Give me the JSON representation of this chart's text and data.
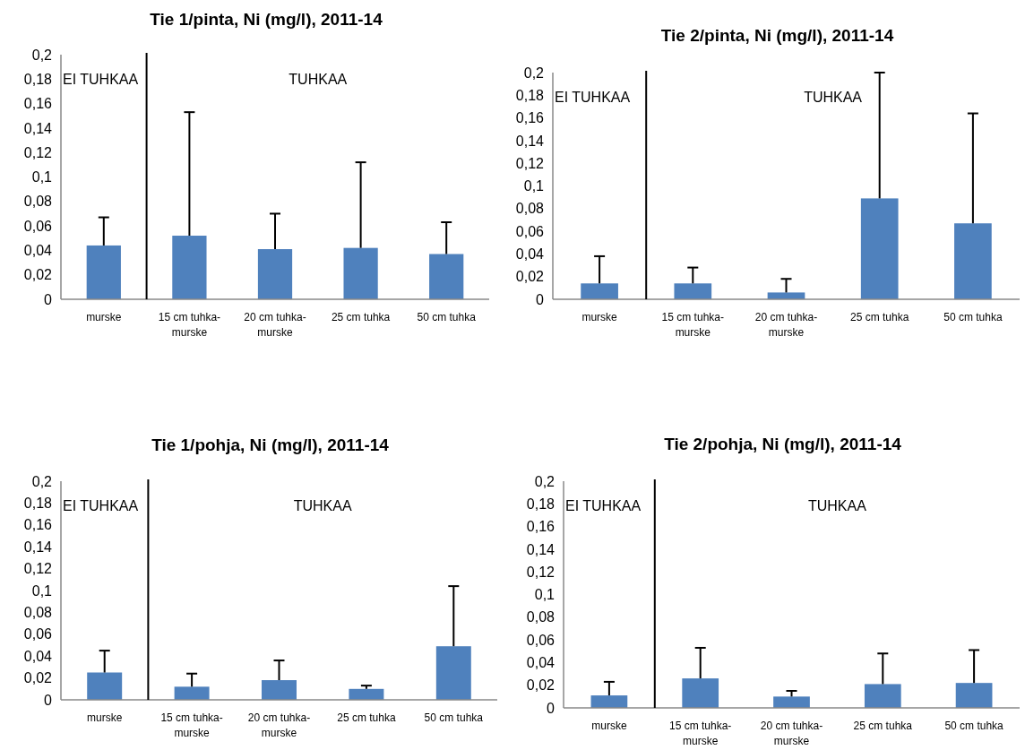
{
  "chart_data": [
    {
      "type": "bar",
      "title": "Tie 1/pinta, Ni (mg/l), 2011-14",
      "categories": [
        "murske",
        "15 cm tuhka-murske",
        "20 cm tuhka-murske",
        "25 cm tuhka",
        "50 cm tuhka"
      ],
      "values": [
        0.044,
        0.052,
        0.041,
        0.042,
        0.037
      ],
      "errors": [
        [
          0.044,
          0.067
        ],
        [
          0.052,
          0.153
        ],
        [
          0.041,
          0.07
        ],
        [
          0.042,
          0.112
        ],
        [
          0.037,
          0.063
        ]
      ],
      "color": "#4f81bd",
      "ylim": [
        0,
        0.2
      ],
      "yticks": [
        {
          "value": 0,
          "label": "0"
        },
        {
          "value": 0.02,
          "label": "0,02"
        },
        {
          "value": 0.04,
          "label": "0,04"
        },
        {
          "value": 0.06,
          "label": "0,06"
        },
        {
          "value": 0.08,
          "label": "0,08"
        },
        {
          "value": 0.1,
          "label": "0,1"
        },
        {
          "value": 0.12,
          "label": "0,12"
        },
        {
          "value": 0.14,
          "label": "0,14"
        },
        {
          "value": 0.16,
          "label": "0,16"
        },
        {
          "value": 0.18,
          "label": "0,18"
        },
        {
          "value": 0.2,
          "label": "0,2"
        }
      ],
      "annotations": [
        "EI TUHKAA",
        "TUHKAA"
      ]
    },
    {
      "type": "bar",
      "title": "Tie 2/pinta, Ni (mg/l), 2011-14",
      "categories": [
        "murske",
        "15 cm tuhka-murske",
        "20 cm tuhka-murske",
        "25 cm tuhka",
        "50 cm tuhka"
      ],
      "values": [
        0.014,
        0.014,
        0.006,
        0.089,
        0.067
      ],
      "errors": [
        [
          0.014,
          0.038
        ],
        [
          0.014,
          0.028
        ],
        [
          0.006,
          0.018
        ],
        [
          0.089,
          0.2
        ],
        [
          0.067,
          0.164
        ]
      ],
      "color": "#4f81bd",
      "ylim": [
        0,
        0.2
      ],
      "yticks": [
        {
          "value": 0,
          "label": "0"
        },
        {
          "value": 0.02,
          "label": "0,02"
        },
        {
          "value": 0.04,
          "label": "0,04"
        },
        {
          "value": 0.06,
          "label": "0,06"
        },
        {
          "value": 0.08,
          "label": "0,08"
        },
        {
          "value": 0.1,
          "label": "0,1"
        },
        {
          "value": 0.12,
          "label": "0,12"
        },
        {
          "value": 0.14,
          "label": "0,14"
        },
        {
          "value": 0.16,
          "label": "0,16"
        },
        {
          "value": 0.18,
          "label": "0,18"
        },
        {
          "value": 0.2,
          "label": "0,2"
        }
      ],
      "annotations": [
        "EI TUHKAA",
        "TUHKAA"
      ]
    },
    {
      "type": "bar",
      "title": "Tie 1/pohja, Ni (mg/l), 2011-14",
      "categories": [
        "murske",
        "15 cm tuhka-murske",
        "20 cm tuhka-murske",
        "25 cm tuhka",
        "50 cm tuhka"
      ],
      "values": [
        0.025,
        0.012,
        0.018,
        0.01,
        0.049
      ],
      "errors": [
        [
          0.025,
          0.045
        ],
        [
          0.012,
          0.024
        ],
        [
          0.018,
          0.036
        ],
        [
          0.01,
          0.013
        ],
        [
          0.049,
          0.104
        ]
      ],
      "color": "#4f81bd",
      "ylim": [
        0,
        0.2
      ],
      "yticks": [
        {
          "value": 0,
          "label": "0"
        },
        {
          "value": 0.02,
          "label": "0,02"
        },
        {
          "value": 0.04,
          "label": "0,04"
        },
        {
          "value": 0.06,
          "label": "0,06"
        },
        {
          "value": 0.08,
          "label": "0,08"
        },
        {
          "value": 0.1,
          "label": "0,1"
        },
        {
          "value": 0.12,
          "label": "0,12"
        },
        {
          "value": 0.14,
          "label": "0,14"
        },
        {
          "value": 0.16,
          "label": "0,16"
        },
        {
          "value": 0.18,
          "label": "0,18"
        },
        {
          "value": 0.2,
          "label": "0,2"
        }
      ],
      "annotations": [
        "EI TUHKAA",
        "TUHKAA"
      ]
    },
    {
      "type": "bar",
      "title": "Tie 2/pohja, Ni (mg/l), 2011-14",
      "categories": [
        "murske",
        "15 cm tuhka-murske",
        "20 cm tuhka-murske",
        "25 cm tuhka",
        "50 cm tuhka"
      ],
      "values": [
        0.011,
        0.026,
        0.01,
        0.021,
        0.022
      ],
      "errors": [
        [
          0.011,
          0.023
        ],
        [
          0.026,
          0.053
        ],
        [
          0.01,
          0.015
        ],
        [
          0.021,
          0.048
        ],
        [
          0.022,
          0.051
        ]
      ],
      "color": "#4f81bd",
      "ylim": [
        0,
        0.2
      ],
      "yticks": [
        {
          "value": 0,
          "label": "0"
        },
        {
          "value": 0.02,
          "label": "0,02"
        },
        {
          "value": 0.04,
          "label": "0,04"
        },
        {
          "value": 0.06,
          "label": "0,06"
        },
        {
          "value": 0.08,
          "label": "0,08"
        },
        {
          "value": 0.1,
          "label": "0,1"
        },
        {
          "value": 0.12,
          "label": "0,12"
        },
        {
          "value": 0.14,
          "label": "0,14"
        },
        {
          "value": 0.16,
          "label": "0,16"
        },
        {
          "value": 0.18,
          "label": "0,18"
        },
        {
          "value": 0.2,
          "label": "0,2"
        }
      ],
      "annotations": [
        "EI TUHKAA",
        "TUHKAA"
      ]
    }
  ]
}
